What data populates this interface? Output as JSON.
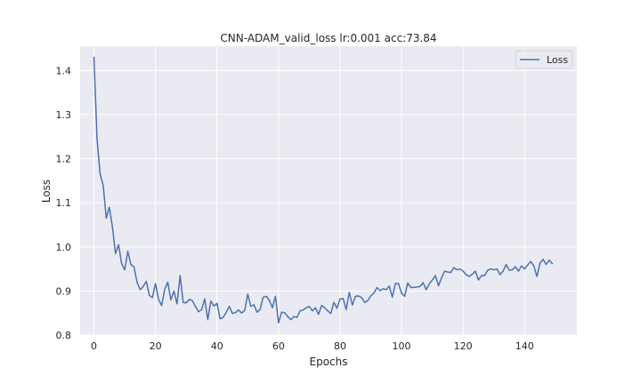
{
  "chart_data": {
    "type": "line",
    "title": "CNN-ADAM_valid_loss lr:0.001 acc:73.84",
    "xlabel": "Epochs",
    "ylabel": "Loss",
    "xlim": [
      -4.5,
      157
    ],
    "ylim": [
      0.8,
      1.455
    ],
    "xticks": [
      0,
      20,
      40,
      60,
      80,
      100,
      120,
      140
    ],
    "yticks": [
      0.8,
      0.9,
      1.0,
      1.1,
      1.2,
      1.3,
      1.4
    ],
    "xtick_labels": [
      "0",
      "20",
      "40",
      "60",
      "80",
      "100",
      "120",
      "140"
    ],
    "ytick_labels": [
      "0.8",
      "0.9",
      "1.0",
      "1.1",
      "1.2",
      "1.3",
      "1.4"
    ],
    "grid": true,
    "legend_position": "top-right",
    "line_color": "#4c72b0",
    "background_color": "#eaeaf2",
    "series": [
      {
        "name": "Loss",
        "x": [
          0,
          1,
          2,
          3,
          4,
          5,
          6,
          7,
          8,
          9,
          10,
          11,
          12,
          13,
          14,
          15,
          16,
          17,
          18,
          19,
          20,
          21,
          22,
          23,
          24,
          25,
          26,
          27,
          28,
          29,
          30,
          31,
          32,
          33,
          34,
          35,
          36,
          37,
          38,
          39,
          40,
          41,
          42,
          43,
          44,
          45,
          46,
          47,
          48,
          49,
          50,
          51,
          52,
          53,
          54,
          55,
          56,
          57,
          58,
          59,
          60,
          61,
          62,
          63,
          64,
          65,
          66,
          67,
          68,
          69,
          70,
          71,
          72,
          73,
          74,
          75,
          76,
          77,
          78,
          79,
          80,
          81,
          82,
          83,
          84,
          85,
          86,
          87,
          88,
          89,
          90,
          91,
          92,
          93,
          94,
          95,
          96,
          97,
          98,
          99,
          100,
          101,
          102,
          103,
          104,
          105,
          106,
          107,
          108,
          109,
          110,
          111,
          112,
          113,
          114,
          115,
          116,
          117,
          118,
          119,
          120,
          121,
          122,
          123,
          124,
          125,
          126,
          127,
          128,
          129,
          130,
          131,
          132,
          133,
          134,
          135,
          136,
          137,
          138,
          139,
          140,
          141,
          142,
          143,
          144,
          145,
          146,
          147,
          148,
          149
        ],
        "values": [
          1.43,
          1.245,
          1.165,
          1.14,
          1.065,
          1.09,
          1.045,
          0.985,
          1.005,
          0.962,
          0.948,
          0.99,
          0.96,
          0.955,
          0.92,
          0.903,
          0.91,
          0.922,
          0.89,
          0.885,
          0.917,
          0.881,
          0.867,
          0.904,
          0.92,
          0.88,
          0.9,
          0.871,
          0.935,
          0.874,
          0.873,
          0.881,
          0.878,
          0.865,
          0.853,
          0.858,
          0.882,
          0.835,
          0.877,
          0.866,
          0.872,
          0.837,
          0.84,
          0.852,
          0.865,
          0.849,
          0.851,
          0.857,
          0.85,
          0.856,
          0.893,
          0.865,
          0.869,
          0.852,
          0.858,
          0.886,
          0.888,
          0.879,
          0.862,
          0.888,
          0.828,
          0.852,
          0.851,
          0.842,
          0.835,
          0.842,
          0.84,
          0.855,
          0.857,
          0.862,
          0.865,
          0.855,
          0.862,
          0.847,
          0.867,
          0.862,
          0.855,
          0.849,
          0.874,
          0.861,
          0.882,
          0.883,
          0.858,
          0.897,
          0.868,
          0.888,
          0.889,
          0.885,
          0.874,
          0.878,
          0.889,
          0.895,
          0.908,
          0.901,
          0.905,
          0.903,
          0.911,
          0.886,
          0.917,
          0.917,
          0.895,
          0.888,
          0.918,
          0.908,
          0.908,
          0.909,
          0.91,
          0.919,
          0.903,
          0.916,
          0.925,
          0.935,
          0.912,
          0.93,
          0.945,
          0.943,
          0.942,
          0.953,
          0.948,
          0.95,
          0.945,
          0.937,
          0.933,
          0.938,
          0.945,
          0.925,
          0.935,
          0.935,
          0.947,
          0.95,
          0.948,
          0.95,
          0.937,
          0.945,
          0.96,
          0.947,
          0.948,
          0.955,
          0.945,
          0.957,
          0.95,
          0.959,
          0.967,
          0.957,
          0.933,
          0.963,
          0.972,
          0.96,
          0.97,
          0.962
        ]
      }
    ]
  }
}
